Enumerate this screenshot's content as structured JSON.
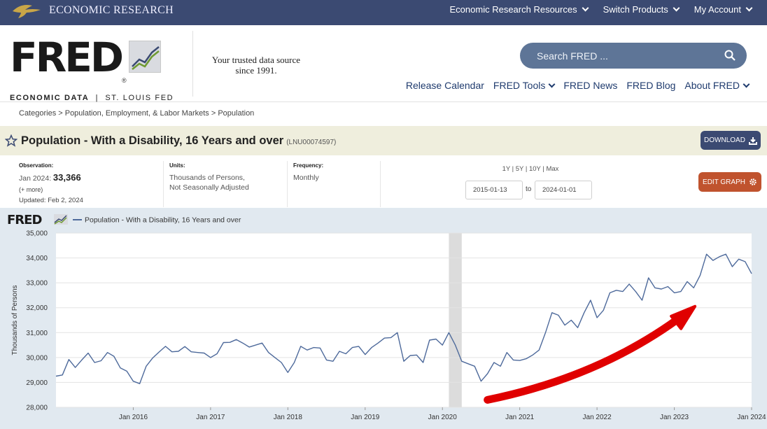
{
  "topbar": {
    "org": "ECONOMIC RESEARCH",
    "nav": [
      "Economic Research Resources",
      "Switch Products",
      "My Account"
    ]
  },
  "header": {
    "logo_word": "FRED",
    "logo_sub_bold": "ECONOMIC DATA",
    "logo_sub_rest": "ST. LOUIS FED",
    "tagline_1": "Your trusted data source",
    "tagline_2": "since 1991.",
    "search_placeholder": "Search FRED ...",
    "nav": [
      "Release Calendar",
      "FRED Tools",
      "FRED News",
      "FRED Blog",
      "About FRED"
    ]
  },
  "breadcrumb": "Categories > Population, Employment, & Labor Markets > Population",
  "series": {
    "title": "Population - With a Disability, 16 Years and over",
    "code": "(LNU00074597)",
    "download_label": "DOWNLOAD"
  },
  "meta": {
    "observation_label": "Observation:",
    "observation_date": "Jan 2024:",
    "observation_value": "33,366",
    "more": "(+ more)",
    "updated": "Updated: Feb 2, 2024",
    "units_label": "Units:",
    "units_1": "Thousands of Persons,",
    "units_2": "Not Seasonally Adjusted",
    "frequency_label": "Frequency:",
    "frequency": "Monthly",
    "ranges": "1Y | 5Y | 10Y | Max",
    "start_date": "2015-01-13",
    "to": "to",
    "end_date": "2024-01-01",
    "edit_label": "EDIT GRAPH"
  },
  "colors": {
    "topbar": "#3b4a72",
    "series_line": "#4e6a9b",
    "annotation_arrow": "#e00000",
    "recession_band": "#dcdcdc",
    "plot_bg": "#ffffff",
    "panel_bg": "#e1e9f0"
  },
  "chart_data": {
    "type": "line",
    "brand": "FRED",
    "legend": "Population - With a Disability, 16 Years and over",
    "ylabel": "Thousands of Persons",
    "xlabel": "",
    "ylim": [
      28000,
      35000
    ],
    "yticks": [
      28000,
      29000,
      30000,
      31000,
      32000,
      33000,
      34000,
      35000
    ],
    "ytick_labels": [
      "28,000",
      "29,000",
      "30,000",
      "31,000",
      "32,000",
      "33,000",
      "34,000",
      "35,000"
    ],
    "xlim": [
      "2015-01",
      "2024-01"
    ],
    "xticks": [
      "2016-01",
      "2017-01",
      "2018-01",
      "2019-01",
      "2020-01",
      "2021-01",
      "2022-01",
      "2023-01",
      "2024-01"
    ],
    "xtick_labels": [
      "Jan 2016",
      "Jan 2017",
      "Jan 2018",
      "Jan 2019",
      "Jan 2020",
      "Jan 2021",
      "Jan 2022",
      "Jan 2023",
      "Jan 2024"
    ],
    "grid": "horizontal",
    "recession": {
      "start": "2020-02",
      "end": "2020-04"
    },
    "annotation": {
      "type": "hand-drawn arrow",
      "from": [
        "2020-08",
        28300
      ],
      "to": [
        "2023-04",
        32000
      ]
    },
    "series": [
      {
        "name": "Population - With a Disability, 16 Years and over",
        "dates": [
          "2015-01",
          "2015-02",
          "2015-03",
          "2015-04",
          "2015-05",
          "2015-06",
          "2015-07",
          "2015-08",
          "2015-09",
          "2015-10",
          "2015-11",
          "2015-12",
          "2016-01",
          "2016-02",
          "2016-03",
          "2016-04",
          "2016-05",
          "2016-06",
          "2016-07",
          "2016-08",
          "2016-09",
          "2016-10",
          "2016-11",
          "2016-12",
          "2017-01",
          "2017-02",
          "2017-03",
          "2017-04",
          "2017-05",
          "2017-06",
          "2017-07",
          "2017-08",
          "2017-09",
          "2017-10",
          "2017-11",
          "2017-12",
          "2018-01",
          "2018-02",
          "2018-03",
          "2018-04",
          "2018-05",
          "2018-06",
          "2018-07",
          "2018-08",
          "2018-09",
          "2018-10",
          "2018-11",
          "2018-12",
          "2019-01",
          "2019-02",
          "2019-03",
          "2019-04",
          "2019-05",
          "2019-06",
          "2019-07",
          "2019-08",
          "2019-09",
          "2019-10",
          "2019-11",
          "2019-12",
          "2020-01",
          "2020-02",
          "2020-03",
          "2020-04",
          "2020-05",
          "2020-06",
          "2020-07",
          "2020-08",
          "2020-09",
          "2020-10",
          "2020-11",
          "2020-12",
          "2021-01",
          "2021-02",
          "2021-03",
          "2021-04",
          "2021-05",
          "2021-06",
          "2021-07",
          "2021-08",
          "2021-09",
          "2021-10",
          "2021-11",
          "2021-12",
          "2022-01",
          "2022-02",
          "2022-03",
          "2022-04",
          "2022-05",
          "2022-06",
          "2022-07",
          "2022-08",
          "2022-09",
          "2022-10",
          "2022-11",
          "2022-12",
          "2023-01",
          "2023-02",
          "2023-03",
          "2023-04",
          "2023-05",
          "2023-06",
          "2023-07",
          "2023-08",
          "2023-09",
          "2023-10",
          "2023-11",
          "2023-12",
          "2024-01"
        ],
        "values": [
          29250,
          29300,
          29920,
          29600,
          29900,
          30180,
          29800,
          29870,
          30200,
          30050,
          29580,
          29450,
          29050,
          28950,
          29650,
          29980,
          30220,
          30450,
          30230,
          30250,
          30440,
          30230,
          30200,
          30180,
          30000,
          30150,
          30600,
          30610,
          30720,
          30580,
          30420,
          30500,
          30580,
          30200,
          30000,
          29800,
          29400,
          29800,
          30450,
          30300,
          30400,
          30380,
          29900,
          29850,
          30250,
          30150,
          30400,
          30450,
          30120,
          30400,
          30580,
          30780,
          30800,
          31000,
          29850,
          30080,
          30100,
          29800,
          30700,
          30740,
          30500,
          31000,
          30500,
          29850,
          29750,
          29650,
          29050,
          29350,
          29800,
          29650,
          30200,
          29900,
          29880,
          29950,
          30100,
          30300,
          31000,
          31800,
          31700,
          31300,
          31500,
          31200,
          31800,
          32300,
          31600,
          31900,
          32600,
          32700,
          32650,
          32950,
          32650,
          32300,
          33200,
          32800,
          32750,
          32850,
          32600,
          32650,
          33050,
          32800,
          33300,
          34150,
          33900,
          34050,
          34150,
          33650,
          33950,
          33850,
          33366
        ]
      }
    ]
  }
}
